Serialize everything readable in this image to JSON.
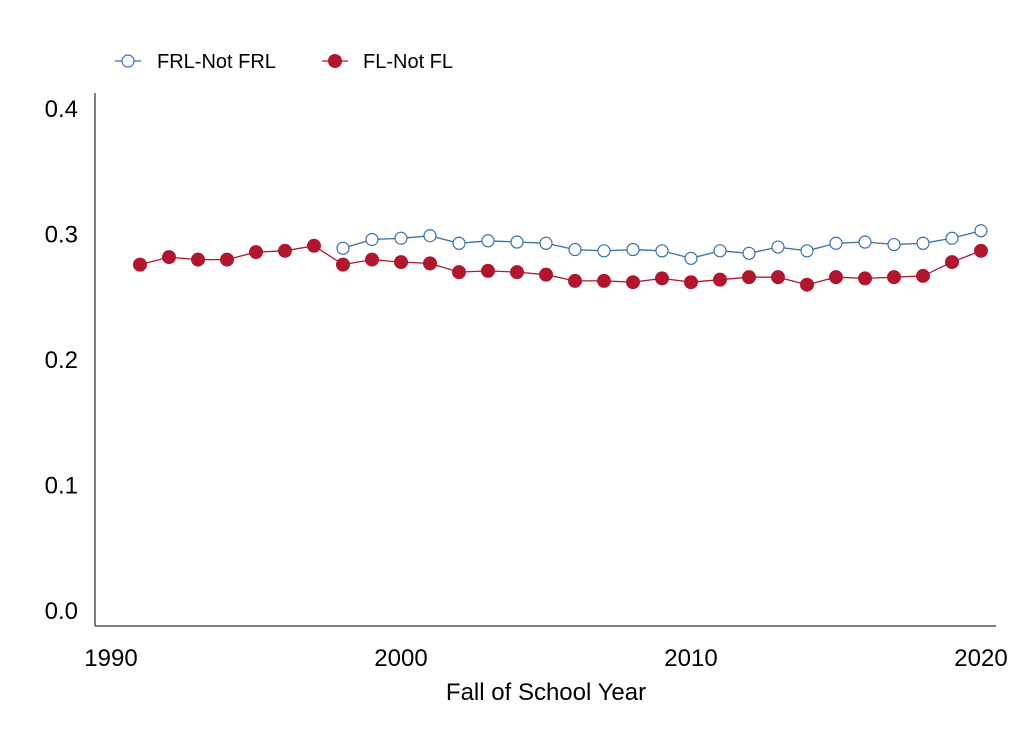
{
  "chart_data": {
    "type": "line",
    "title": "",
    "xlabel": "Fall of School Year",
    "ylabel": "",
    "xlim": [
      1990,
      2020
    ],
    "ylim": [
      0.0,
      0.4
    ],
    "x_ticks": [
      1990,
      2000,
      2010,
      2020
    ],
    "y_ticks": [
      "0.0",
      "0.1",
      "0.2",
      "0.3",
      "0.4"
    ],
    "grid": false,
    "legend_position": "top-left",
    "series": [
      {
        "name": "FRL-Not FRL",
        "color": "#3a6fa8",
        "marker": "hollow-circle",
        "x": [
          1998,
          1999,
          2000,
          2001,
          2002,
          2003,
          2004,
          2005,
          2006,
          2007,
          2008,
          2009,
          2010,
          2011,
          2012,
          2013,
          2014,
          2015,
          2016,
          2017,
          2018,
          2019,
          2020
        ],
        "y": [
          0.289,
          0.296,
          0.297,
          0.299,
          0.293,
          0.295,
          0.294,
          0.293,
          0.288,
          0.287,
          0.288,
          0.287,
          0.281,
          0.287,
          0.285,
          0.29,
          0.287,
          0.293,
          0.294,
          0.292,
          0.293,
          0.297,
          0.303
        ]
      },
      {
        "name": "FL-Not FL",
        "color": "#b0172e",
        "marker": "filled-circle",
        "x": [
          1991,
          1992,
          1993,
          1994,
          1995,
          1996,
          1997,
          1998,
          1999,
          2000,
          2001,
          2002,
          2003,
          2004,
          2005,
          2006,
          2007,
          2008,
          2009,
          2010,
          2011,
          2012,
          2013,
          2014,
          2015,
          2016,
          2017,
          2018,
          2019,
          2020
        ],
        "y": [
          0.276,
          0.282,
          0.28,
          0.28,
          0.286,
          0.287,
          0.291,
          0.276,
          0.28,
          0.278,
          0.277,
          0.27,
          0.271,
          0.27,
          0.268,
          0.263,
          0.263,
          0.262,
          0.265,
          0.262,
          0.264,
          0.266,
          0.266,
          0.26,
          0.266,
          0.265,
          0.266,
          0.267,
          0.278,
          0.287
        ]
      }
    ]
  }
}
